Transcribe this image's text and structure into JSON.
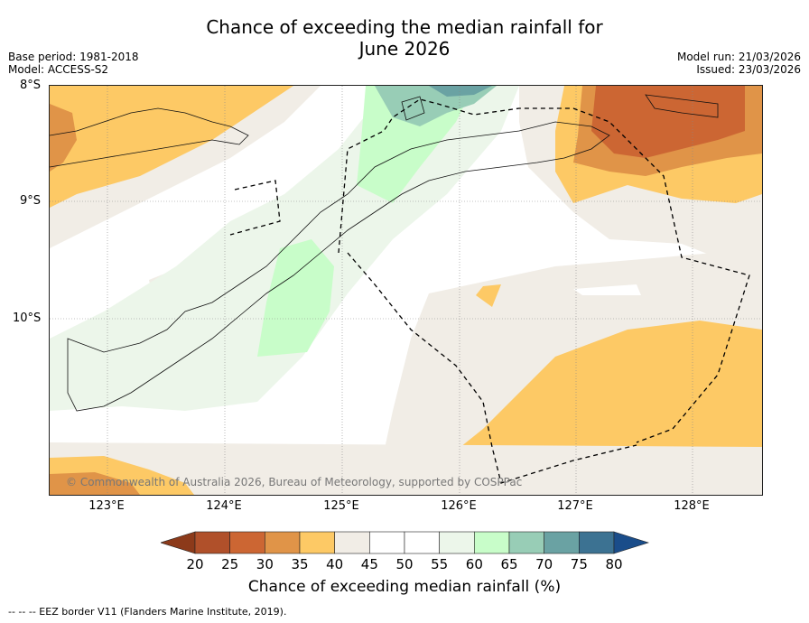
{
  "title_line1": "Chance of exceeding the median rainfall for",
  "title_line2": "June 2026",
  "base_period": "Base period: 1981-2018",
  "model": "Model: ACCESS-S2",
  "model_run": "Model run: 21/03/2026",
  "issued": "Issued: 23/03/2026",
  "lat_labels": [
    "8°S",
    "9°S",
    "10°S"
  ],
  "lon_labels": [
    "123°E",
    "124°E",
    "125°E",
    "126°E",
    "127°E",
    "128°E"
  ],
  "copyright": "© Commonwealth of Australia 2026, Bureau of Meteorology, supported by COSPPac",
  "colorbar": {
    "label": "Chance of exceeding median rainfall (%)",
    "ticks": [
      "20",
      "25",
      "30",
      "35",
      "40",
      "45",
      "50",
      "55",
      "60",
      "65",
      "70",
      "75",
      "80"
    ],
    "colors": [
      "#8c3a1a",
      "#b0502a",
      "#cc6633",
      "#e09448",
      "#fdc965",
      "#f1ede6",
      "#ffffff",
      "#ffffff",
      "#ecf6ea",
      "#c8fdc9",
      "#98cdb6",
      "#6aa2a3",
      "#3c7292",
      "#1a4d8a"
    ]
  },
  "footnote": "--  --  -- EEZ border V11 (Flanders Marine Institute, 2019)."
}
